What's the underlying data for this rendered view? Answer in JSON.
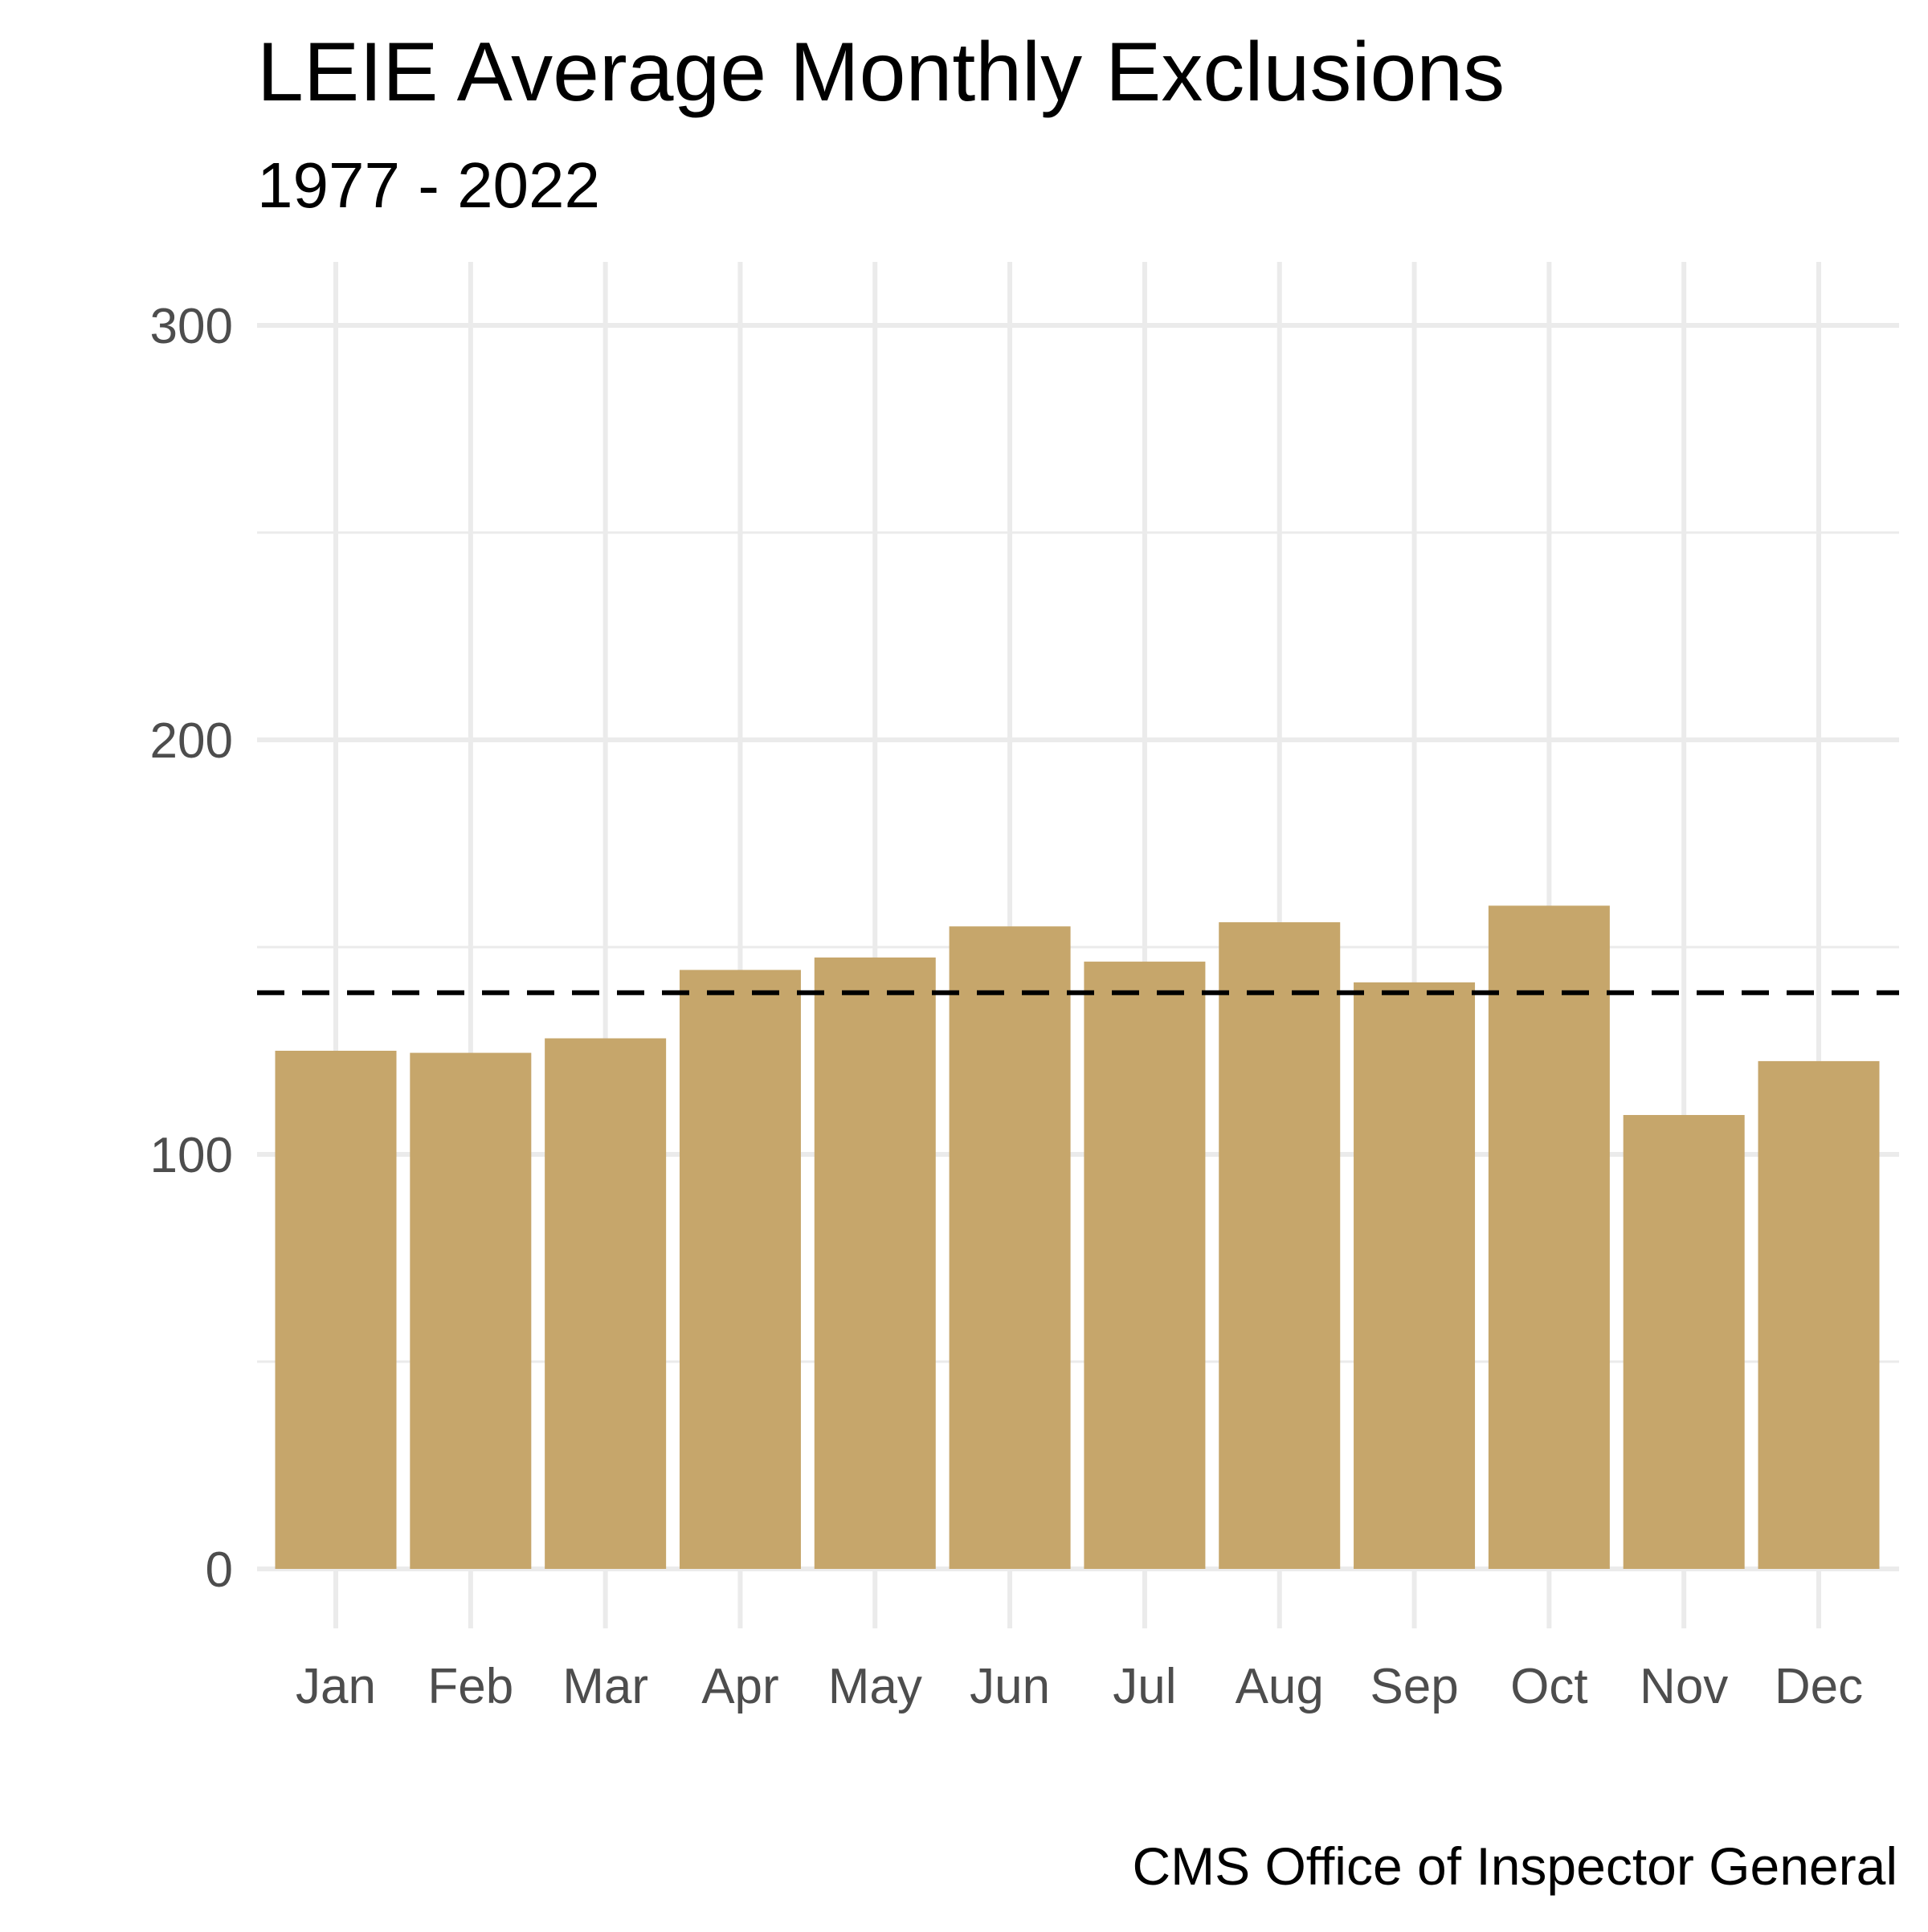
{
  "chart_data": {
    "type": "bar",
    "title": "LEIE Average Monthly Exclusions",
    "subtitle": "1977 - 2022",
    "caption": "CMS Office of Inspector General",
    "xlabel": "",
    "ylabel": "",
    "categories": [
      "Jan",
      "Feb",
      "Mar",
      "Apr",
      "May",
      "Jun",
      "Jul",
      "Aug",
      "Sep",
      "Oct",
      "Nov",
      "Dec"
    ],
    "values": [
      125,
      124.5,
      128,
      144.5,
      147.5,
      155,
      146.5,
      156,
      141.5,
      160,
      109.5,
      122.5
    ],
    "reference_line": {
      "value": 139,
      "style": "dashed"
    },
    "ylim": [
      0,
      300
    ],
    "yticks": [
      0,
      100,
      200,
      300
    ],
    "yticks_labels": [
      "0",
      "100",
      "200",
      "300"
    ],
    "minor_yticks": [
      50,
      150,
      250
    ],
    "grid": true,
    "legend": "none",
    "colors": {
      "bar": "#C6A66B",
      "grid": "#EBEBEB",
      "reference": "#000000",
      "tick_text": "#4D4D4D"
    }
  }
}
